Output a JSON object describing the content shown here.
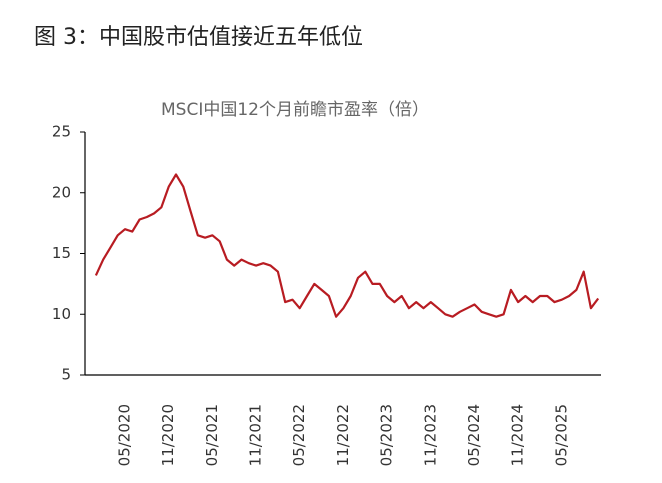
{
  "chart_data": {
    "type": "line",
    "title": "图 3：中国股市估值接近五年低位",
    "subtitle": "MSCI中国12个月前瞻市盈率（倍）",
    "x": [
      "01/2020",
      "02/2020",
      "03/2020",
      "04/2020",
      "05/2020",
      "06/2020",
      "07/2020",
      "08/2020",
      "09/2020",
      "10/2020",
      "11/2020",
      "12/2020",
      "01/2021",
      "02/2021",
      "03/2021",
      "04/2021",
      "05/2021",
      "06/2021",
      "07/2021",
      "08/2021",
      "09/2021",
      "10/2021",
      "11/2021",
      "12/2021",
      "01/2022",
      "02/2022",
      "03/2022",
      "04/2022",
      "05/2022",
      "06/2022",
      "07/2022",
      "08/2022",
      "09/2022",
      "10/2022",
      "11/2022",
      "12/2022",
      "01/2023",
      "02/2023",
      "03/2023",
      "04/2023",
      "05/2023",
      "06/2023",
      "07/2023",
      "08/2023",
      "09/2023",
      "10/2023",
      "11/2023",
      "12/2023",
      "01/2024",
      "02/2024",
      "03/2024",
      "04/2024",
      "05/2024",
      "06/2024",
      "07/2024",
      "08/2024",
      "09/2024",
      "10/2024",
      "11/2024",
      "12/2024",
      "01/2025",
      "02/2025",
      "03/2025",
      "04/2025",
      "05/2025",
      "06/2025",
      "07/2025",
      "08/2025",
      "09/2025",
      "10/2025"
    ],
    "series": [
      {
        "name": "MSCI中国12个月前瞻市盈率",
        "color": "#b81c22",
        "values": [
          13.2,
          14.5,
          15.5,
          16.5,
          17.0,
          16.8,
          17.8,
          18.0,
          18.3,
          18.8,
          20.5,
          21.5,
          20.5,
          18.5,
          16.5,
          16.3,
          16.5,
          16.0,
          14.5,
          14.0,
          14.5,
          14.2,
          14.0,
          14.2,
          14.0,
          13.5,
          11.0,
          11.2,
          10.5,
          11.5,
          12.5,
          12.0,
          11.5,
          9.8,
          10.5,
          11.5,
          13.0,
          13.5,
          12.5,
          12.5,
          11.5,
          11.0,
          11.5,
          10.5,
          11.0,
          10.5,
          11.0,
          10.5,
          10.0,
          9.8,
          10.2,
          10.5,
          10.8,
          10.2,
          10.0,
          9.8,
          10.0,
          12.0,
          11.0,
          11.5,
          11.0,
          11.5,
          11.5,
          11.0,
          11.2,
          11.5,
          12.0,
          13.5,
          10.5,
          11.3
        ]
      }
    ],
    "xticks": [
      "05/2020",
      "11/2020",
      "05/2021",
      "11/2021",
      "05/2022",
      "11/2022",
      "05/2023",
      "11/2023",
      "05/2024",
      "11/2024",
      "05/2025"
    ],
    "ylim": [
      5,
      25
    ],
    "yticks": [
      5,
      10,
      15,
      20,
      25
    ],
    "grid": false
  }
}
